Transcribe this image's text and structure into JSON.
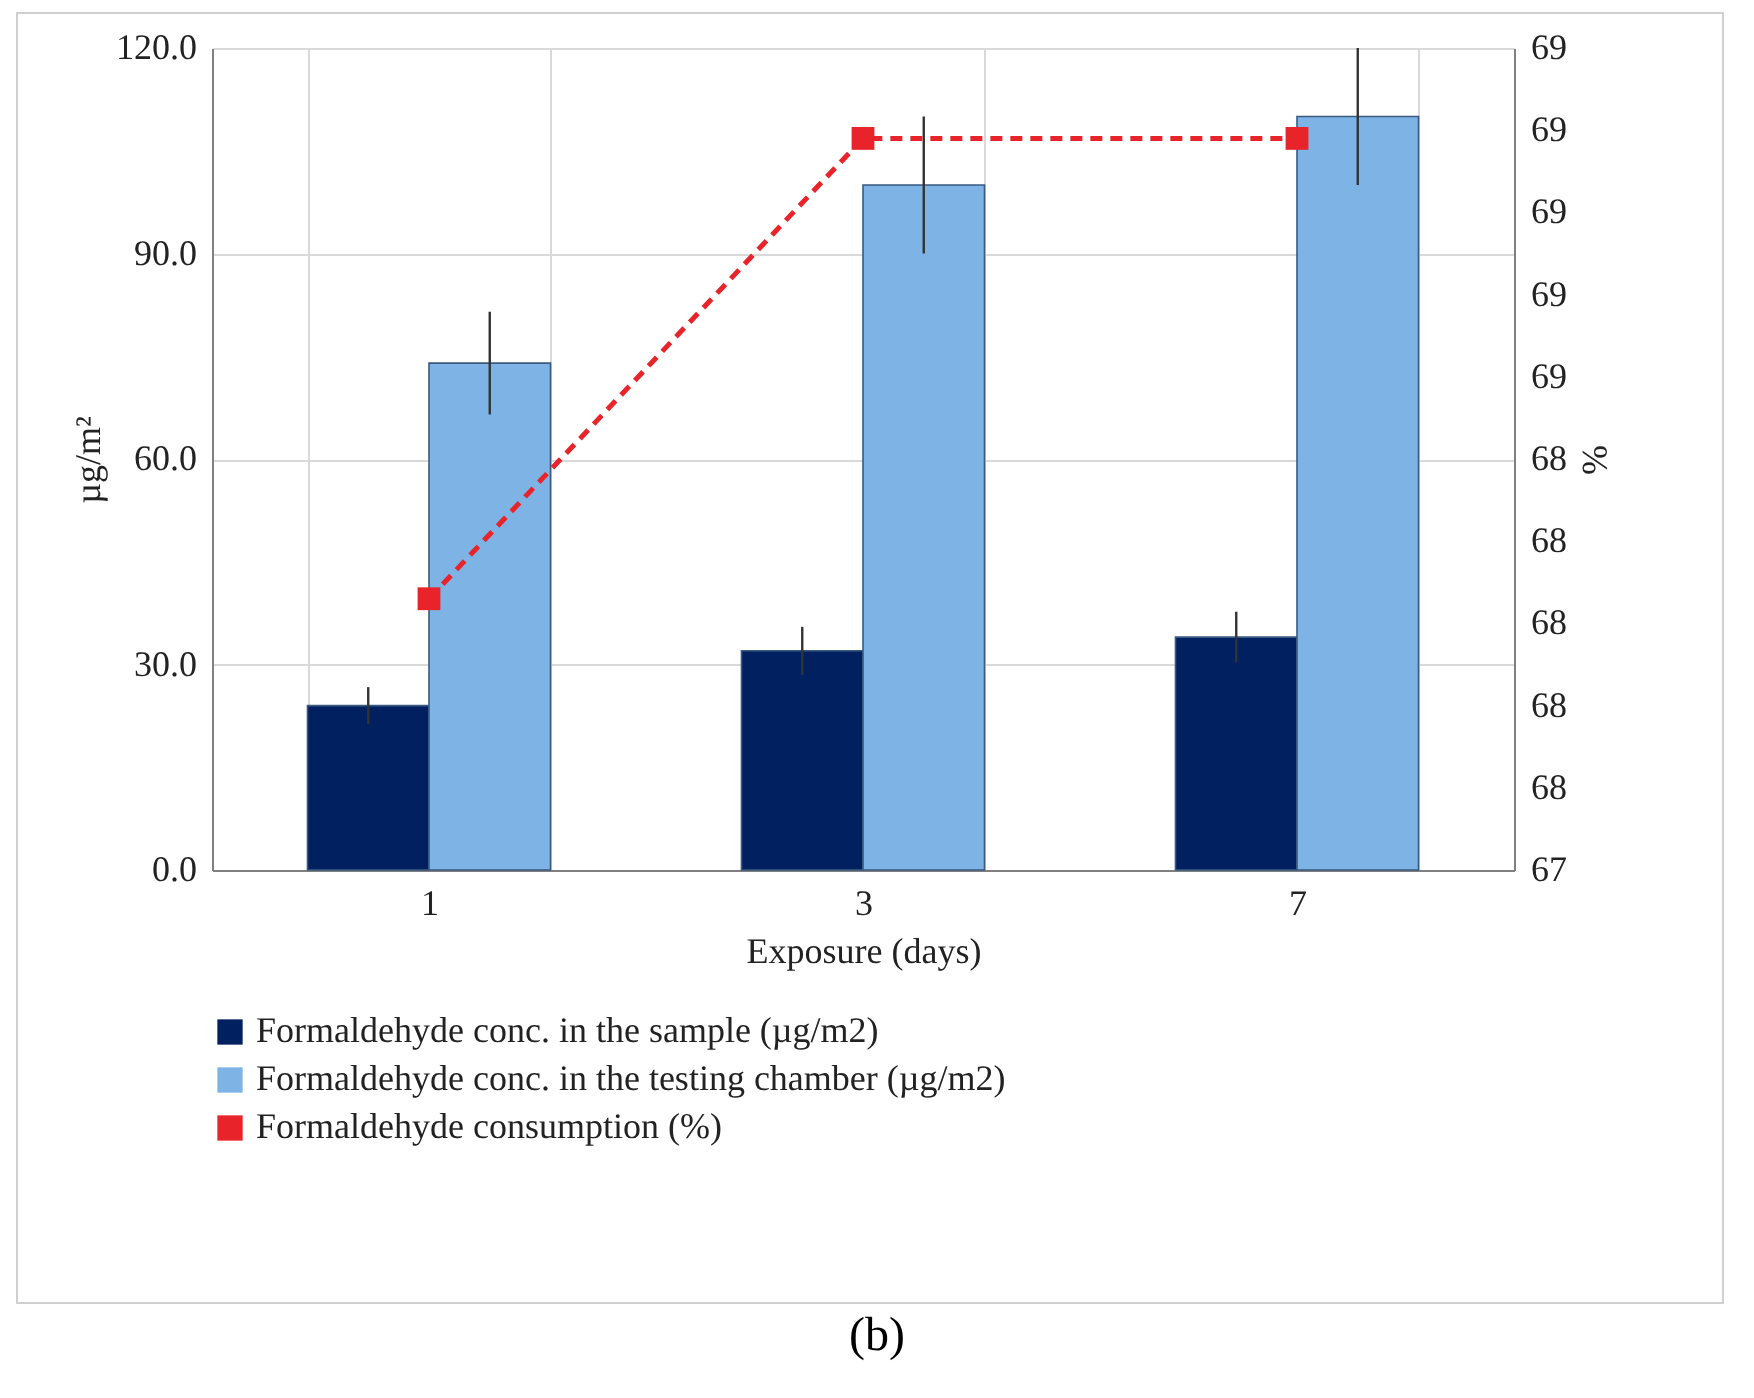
{
  "chart_data": {
    "type": "bar",
    "categories": [
      "1",
      "3",
      "7"
    ],
    "xlabel": "Exposure (days)",
    "ylabel": "µg/m²",
    "y2label": "%",
    "ylim": [
      0,
      120
    ],
    "yticks": [
      {
        "value": 0,
        "label": "0.0"
      },
      {
        "value": 30,
        "label": "30.0"
      },
      {
        "value": 60,
        "label": "60.0"
      },
      {
        "value": 90,
        "label": "90.0"
      },
      {
        "value": 120,
        "label": "120.0"
      }
    ],
    "y2lim": [
      67.4,
      69.4
    ],
    "y2ticks": [
      {
        "value": 67.4,
        "label": "67"
      },
      {
        "value": 67.6,
        "label": "68"
      },
      {
        "value": 67.8,
        "label": "68"
      },
      {
        "value": 68.0,
        "label": "68"
      },
      {
        "value": 68.2,
        "label": "68"
      },
      {
        "value": 68.4,
        "label": "68"
      },
      {
        "value": 68.6,
        "label": "69"
      },
      {
        "value": 68.8,
        "label": "69"
      },
      {
        "value": 69.0,
        "label": "69"
      },
      {
        "value": 69.2,
        "label": "69"
      },
      {
        "value": 69.4,
        "label": "69"
      }
    ],
    "series": [
      {
        "name": "Formaldehyde conc. in the sample (µg/m2)",
        "color": "#002060",
        "values": [
          24,
          32,
          34
        ],
        "errors": [
          2.7,
          3.5,
          3.7
        ]
      },
      {
        "name": "Formaldehyde conc. in the testing chamber (µg/m2)",
        "color": "#7eb3e5",
        "values": [
          74,
          100,
          110
        ],
        "errors": [
          7.5,
          10,
          10
        ]
      },
      {
        "name": "Formaldehyde consumption (%)",
        "type": "line",
        "axis": "y2",
        "color": "#e8242a",
        "values": [
          68.06,
          69.18,
          69.18
        ],
        "marker": "square",
        "line_style": "dashed"
      }
    ],
    "grid": true,
    "legend": "bottom",
    "annotations": [
      "(b)"
    ]
  }
}
